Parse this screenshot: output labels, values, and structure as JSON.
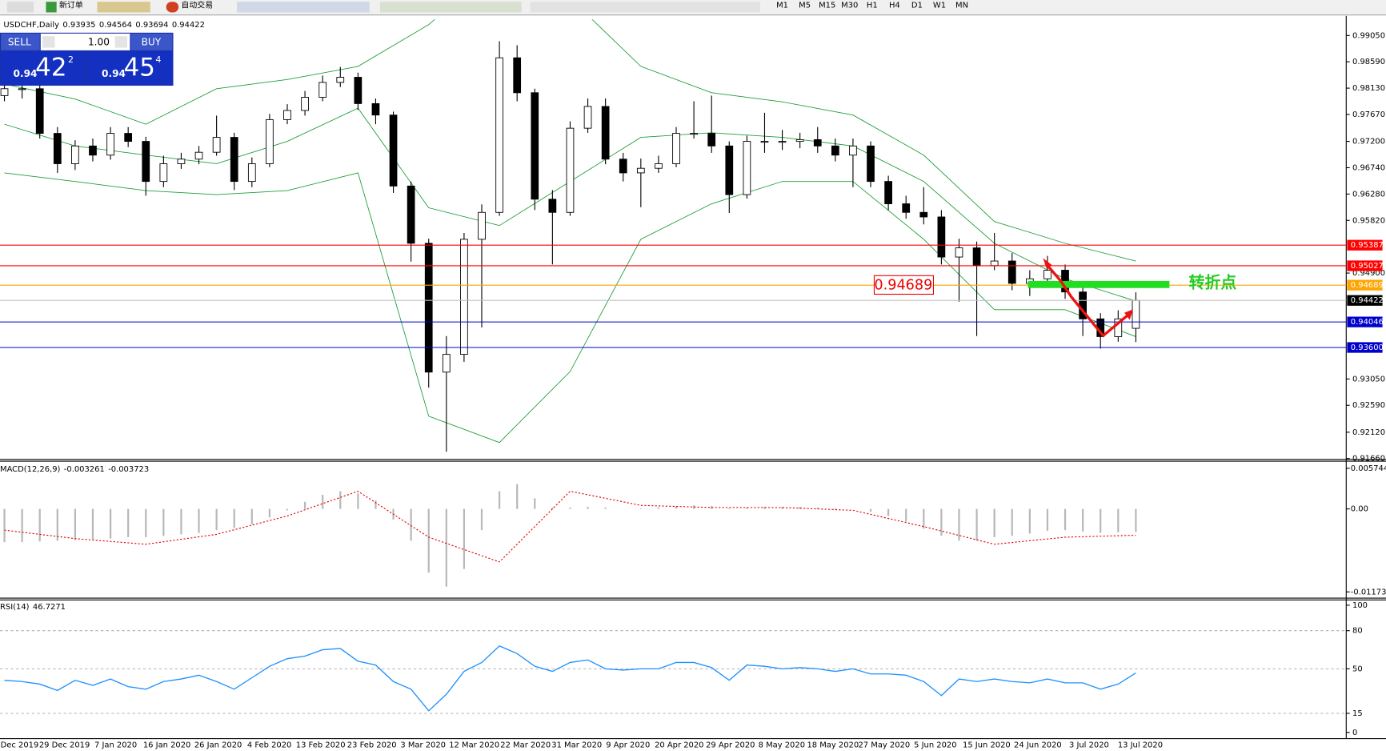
{
  "toolbar": {
    "new_order": "新订单",
    "auto_trading": "自动交易",
    "timeframes": [
      "M1",
      "M5",
      "M15",
      "M30",
      "H1",
      "H4",
      "D1",
      "W1",
      "MN"
    ]
  },
  "trade_panel": {
    "sell": "SELL",
    "lot": "1.00",
    "buy": "BUY",
    "sell_price": {
      "prefix": "0.94",
      "big": "42",
      "small": "2"
    },
    "buy_price": {
      "prefix": "0.94",
      "big": "45",
      "small": "4"
    }
  },
  "x_labels": [
    "19 Dec 2019",
    "29 Dec 2019",
    "7 Jan 2020",
    "16 Jan 2020",
    "26 Jan 2020",
    "4 Feb 2020",
    "13 Feb 2020",
    "23 Feb 2020",
    "3 Mar 2020",
    "12 Mar 2020",
    "22 Mar 2020",
    "31 Mar 2020",
    "9 Apr 2020",
    "20 Apr 2020",
    "29 Apr 2020",
    "8 May 2020",
    "18 May 2020",
    "27 May 2020",
    "5 Jun 2020",
    "15 Jun 2020",
    "24 Jun 2020",
    "3 Jul 2020",
    "13 Jul 2020"
  ],
  "chart_data": [
    {
      "type": "candlestick",
      "title": "USDCHF,Daily",
      "annotation": "转折点",
      "open": [
        0.98,
        0.9812,
        0.9812,
        0.9734,
        0.9681,
        0.9712,
        0.9696,
        0.9734,
        0.972,
        0.965,
        0.9681,
        0.9689,
        0.9701,
        0.9727,
        0.965,
        0.9681,
        0.9758,
        0.9774,
        0.9797,
        0.9823,
        0.9832,
        0.9786,
        0.9766,
        0.9642,
        0.9542,
        0.9317,
        0.9348,
        0.9549,
        0.9596,
        0.9866,
        0.9805,
        0.9619,
        0.9596,
        0.9743,
        0.9781,
        0.9689,
        0.9665,
        0.9673,
        0.9681,
        0.9734,
        0.9734,
        0.9712,
        0.9627,
        0.972,
        0.972,
        0.972,
        0.9723,
        0.9712,
        0.9696,
        0.9712,
        0.965,
        0.9611,
        0.9596,
        0.9588,
        0.9518,
        0.9534,
        0.9503,
        0.9511,
        0.9472,
        0.948,
        0.9495,
        0.9457,
        0.941,
        0.9379,
        0.93935
      ],
      "high": [
        0.9825,
        0.983,
        0.982,
        0.9745,
        0.9722,
        0.9725,
        0.9745,
        0.9745,
        0.9728,
        0.9695,
        0.97,
        0.9712,
        0.9765,
        0.9735,
        0.9692,
        0.9768,
        0.9785,
        0.9808,
        0.9835,
        0.985,
        0.984,
        0.9795,
        0.9772,
        0.965,
        0.955,
        0.938,
        0.956,
        0.961,
        0.9895,
        0.9888,
        0.9812,
        0.9635,
        0.9755,
        0.9795,
        0.9795,
        0.97,
        0.969,
        0.9695,
        0.9745,
        0.979,
        0.98,
        0.972,
        0.973,
        0.977,
        0.974,
        0.9735,
        0.9745,
        0.9725,
        0.9725,
        0.972,
        0.966,
        0.9625,
        0.964,
        0.96,
        0.955,
        0.9545,
        0.956,
        0.9525,
        0.9495,
        0.952,
        0.9505,
        0.9465,
        0.942,
        0.9425,
        0.94564
      ],
      "low": [
        0.979,
        0.9795,
        0.9725,
        0.9665,
        0.967,
        0.9685,
        0.9688,
        0.971,
        0.9625,
        0.964,
        0.9672,
        0.968,
        0.9695,
        0.9635,
        0.964,
        0.9675,
        0.975,
        0.9765,
        0.979,
        0.9815,
        0.9775,
        0.975,
        0.963,
        0.951,
        0.929,
        0.9178,
        0.9335,
        0.9395,
        0.959,
        0.979,
        0.96,
        0.9505,
        0.959,
        0.9735,
        0.968,
        0.965,
        0.9605,
        0.9665,
        0.9675,
        0.9725,
        0.97,
        0.9595,
        0.962,
        0.97,
        0.9705,
        0.9708,
        0.97,
        0.9685,
        0.964,
        0.964,
        0.96,
        0.9585,
        0.9575,
        0.9505,
        0.944,
        0.938,
        0.9495,
        0.946,
        0.945,
        0.947,
        0.9445,
        0.938,
        0.9358,
        0.937,
        0.93694
      ],
      "close": [
        0.9812,
        0.9812,
        0.9734,
        0.9681,
        0.9712,
        0.9696,
        0.9734,
        0.972,
        0.965,
        0.9681,
        0.9689,
        0.9701,
        0.9727,
        0.965,
        0.9681,
        0.9758,
        0.9774,
        0.9797,
        0.9823,
        0.9832,
        0.9786,
        0.9766,
        0.9642,
        0.9542,
        0.9317,
        0.9348,
        0.9549,
        0.9596,
        0.9866,
        0.9805,
        0.9619,
        0.9596,
        0.9743,
        0.9781,
        0.9689,
        0.9665,
        0.9673,
        0.9681,
        0.9734,
        0.9734,
        0.9712,
        0.9627,
        0.972,
        0.972,
        0.972,
        0.9723,
        0.9712,
        0.9696,
        0.9712,
        0.965,
        0.9611,
        0.9596,
        0.9588,
        0.9518,
        0.9534,
        0.9503,
        0.9511,
        0.9472,
        0.948,
        0.9495,
        0.9457,
        0.941,
        0.9379,
        0.941,
        0.94422
      ],
      "bands": {
        "color": "#1f9e3a",
        "upper": [
          0.982,
          0.9794,
          0.975,
          0.9812,
          0.9828,
          0.9851,
          0.9924,
          1.003,
          0.997,
          0.9851,
          0.9805,
          0.9789,
          0.9766,
          0.9696,
          0.958,
          0.9542,
          0.9511
        ],
        "middle": [
          0.975,
          0.9712,
          0.9696,
          0.9681,
          0.972,
          0.9778,
          0.9604,
          0.9573,
          0.965,
          0.9727,
          0.9735,
          0.9727,
          0.9712,
          0.965,
          0.9542,
          0.948,
          0.9441
        ],
        "lower": [
          0.9665,
          0.965,
          0.9634,
          0.9627,
          0.9634,
          0.9665,
          0.924,
          0.9194,
          0.9318,
          0.9549,
          0.9611,
          0.965,
          0.965,
          0.9549,
          0.9426,
          0.9426,
          0.9379
        ]
      },
      "levels": [
        {
          "value": 0.95387,
          "color": "#ff0000"
        },
        {
          "value": 0.95027,
          "color": "#ff0000"
        },
        {
          "value": 0.94689,
          "color": "#ffa500"
        },
        {
          "value": 0.94046,
          "color": "#0000cd"
        },
        {
          "value": 0.936,
          "label": "0.93600",
          "color": "#0000cd"
        }
      ],
      "ylim": [
        0.9166,
        0.9933
      ],
      "yticks": [
        {
          "value": 0.9905,
          "label": "0.99050"
        },
        {
          "value": 0.9859,
          "label": "0.98590"
        },
        {
          "value": 0.9813,
          "label": "0.98130"
        },
        {
          "value": 0.9767,
          "label": "0.97670"
        },
        {
          "value": 0.972,
          "label": "0.97200"
        },
        {
          "value": 0.9674,
          "label": "0.96740"
        },
        {
          "value": 0.9628,
          "label": "0.96280"
        },
        {
          "value": 0.9582,
          "label": "0.95820"
        },
        {
          "value": 0.949,
          "label": "0.94900"
        },
        {
          "value": 0.9305,
          "label": "0.93050"
        },
        {
          "value": 0.9259,
          "label": "0.92590"
        },
        {
          "value": 0.9212,
          "label": "0.92120"
        },
        {
          "value": 0.9166,
          "label": "0.91660"
        }
      ]
    },
    {
      "type": "macd",
      "title": "MACD(12,26,9)",
      "color": "#b8b8b8",
      "signal_color": "#e00000",
      "histogram": [
        -0.0047,
        -0.0047,
        -0.0046,
        -0.0045,
        -0.0044,
        -0.0043,
        -0.0042,
        -0.004,
        -0.004,
        -0.0038,
        -0.0036,
        -0.0034,
        -0.003,
        -0.0027,
        -0.0022,
        -0.0012,
        -0.0002,
        0.001,
        0.002,
        0.0025,
        0.0022,
        0.0012,
        -0.0015,
        -0.0045,
        -0.009,
        -0.011,
        -0.0085,
        -0.003,
        0.0025,
        0.0035,
        0.0015,
        0.0002,
        0.0002,
        0.0003,
        0.0002,
        0.0,
        0.0001,
        0.0002,
        0.0004,
        0.0005,
        0.0004,
        0.0001,
        0.0002,
        0.0003,
        0.0003,
        0.0003,
        0.0002,
        0.0001,
        0.0,
        -0.0004,
        -0.001,
        -0.0018,
        -0.0028,
        -0.0038,
        -0.0045,
        -0.0045,
        -0.004,
        -0.0038,
        -0.0035,
        -0.0031,
        -0.003,
        -0.0032,
        -0.0034,
        -0.0033,
        -0.003261
      ],
      "signal": [
        -0.003,
        -0.0042,
        -0.005,
        -0.0036,
        -0.001,
        0.0025,
        -0.004,
        -0.0075,
        0.0025,
        0.0005,
        0.0002,
        0.0002,
        -0.0002,
        -0.0025,
        -0.005,
        -0.004,
        -0.003723
      ],
      "ylim": [
        -0.0125,
        0.0065
      ],
      "yticks": [
        0.005744,
        {
          "value": 0,
          "label": "0.00"
        },
        -0.011738
      ]
    },
    {
      "type": "line",
      "title": "RSI(14)",
      "color": "#1e90ff",
      "grid": true,
      "values": [
        41,
        40,
        38,
        33,
        41,
        37,
        42,
        36,
        34,
        40,
        42,
        45,
        40,
        34,
        43,
        52,
        58,
        60,
        65,
        66,
        56,
        53,
        40,
        34,
        17,
        30,
        48,
        55,
        68,
        62,
        52,
        48,
        55,
        57,
        50,
        49,
        50,
        50,
        55,
        55,
        51,
        41,
        53,
        52,
        50,
        51,
        50,
        48,
        50,
        46,
        46,
        45,
        40,
        29,
        42,
        40,
        42,
        40,
        39,
        42,
        39,
        39,
        34,
        38,
        46.7271
      ],
      "ylim": [
        0,
        100
      ],
      "yticks": [
        100,
        80,
        50,
        15,
        0
      ]
    }
  ]
}
